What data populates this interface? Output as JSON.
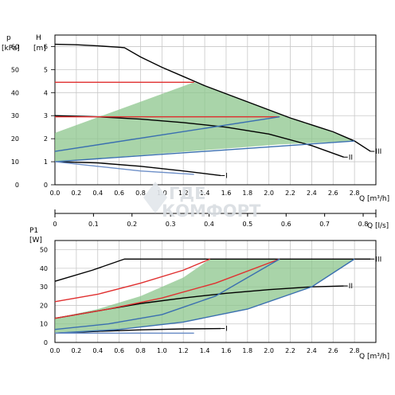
{
  "watermark": {
    "line1": "ГДЕ",
    "line2": "КОМФОРТ"
  },
  "chart_data": [
    {
      "type": "line",
      "ylabel_left": "p",
      "ylabel_left_unit": "[kPa]",
      "ylabel_right": "H",
      "ylabel_right_unit": "[m]",
      "xlabel": "Q [m³/h]",
      "x_ticks": [
        "0.0",
        "0.2",
        "0.4",
        "0.6",
        "0.8",
        "1.0",
        "1.2",
        "1.4",
        "1.6",
        "1.8",
        "2.0",
        "2.2",
        "2.4",
        "2.6",
        "2.8"
      ],
      "y_left_ticks": [
        "0",
        "10",
        "20",
        "30",
        "40",
        "50",
        "60"
      ],
      "y_right_ticks": [
        "0",
        "1",
        "2",
        "3",
        "4",
        "5",
        "6"
      ],
      "xlim": [
        0,
        3.0
      ],
      "ylim": [
        0,
        6.5
      ],
      "grid": true,
      "series": [
        {
          "name": "III",
          "color": "#000000",
          "x": [
            0,
            0.2,
            0.4,
            0.6,
            0.65,
            0.8,
            1.0,
            1.2,
            1.4,
            1.6,
            1.8,
            2.0,
            2.2,
            2.4,
            2.6,
            2.8,
            2.95
          ],
          "y": [
            6.1,
            6.08,
            6.03,
            5.97,
            5.95,
            5.55,
            5.1,
            4.7,
            4.3,
            3.95,
            3.6,
            3.25,
            2.9,
            2.6,
            2.3,
            1.9,
            1.45
          ]
        },
        {
          "name": "II",
          "color": "#000000",
          "x": [
            0,
            0.4,
            0.8,
            1.2,
            1.6,
            2.0,
            2.4,
            2.7
          ],
          "y": [
            3.0,
            2.95,
            2.85,
            2.7,
            2.5,
            2.2,
            1.7,
            1.2
          ]
        },
        {
          "name": "I",
          "color": "#000000",
          "x": [
            0,
            0.4,
            0.8,
            1.2,
            1.55
          ],
          "y": [
            1.0,
            0.95,
            0.8,
            0.6,
            0.4
          ]
        },
        {
          "name": "",
          "color": "#e03030",
          "x": [
            0,
            1.3
          ],
          "y": [
            4.45,
            4.45
          ]
        },
        {
          "name": "",
          "color": "#e03030",
          "x": [
            0,
            2.1
          ],
          "y": [
            2.95,
            2.95
          ]
        },
        {
          "name": "",
          "color": "#3a6fb0",
          "x": [
            0,
            2.1
          ],
          "y": [
            1.45,
            2.95
          ]
        },
        {
          "name": "",
          "color": "#3a6fb0",
          "x": [
            0,
            2.8
          ],
          "y": [
            1.0,
            1.9
          ]
        },
        {
          "name": "",
          "color": "#6d8fc8",
          "x": [
            0,
            0.8,
            1.3
          ],
          "y": [
            1.0,
            0.6,
            0.45
          ]
        }
      ],
      "shaded_region": {
        "color": "#8cc68c",
        "x": [
          0,
          1.3,
          1.6,
          1.9,
          2.2,
          2.5,
          2.8,
          2.1,
          1.4,
          0.7,
          0
        ],
        "y": [
          2.25,
          4.45,
          3.95,
          3.45,
          2.9,
          2.45,
          1.9,
          1.75,
          1.5,
          1.25,
          1.0
        ]
      }
    },
    {
      "type": "axis",
      "xlabel": "Q [l/s]",
      "x_ticks": [
        "0",
        "0.1",
        "0.2",
        "0.3",
        "0.4",
        "0.5",
        "0.6",
        "0.7",
        "0.8"
      ],
      "xlim": [
        0,
        0.833
      ]
    },
    {
      "type": "line",
      "ylabel": "P1",
      "ylabel_unit": "[W]",
      "xlabel": "Q [m³/h]",
      "x_ticks": [
        "0.0",
        "0.2",
        "0.4",
        "0.6",
        "0.8",
        "1.0",
        "1.2",
        "1.4",
        "1.6",
        "1.8",
        "2.0",
        "2.2",
        "2.4",
        "2.6",
        "2.8"
      ],
      "y_ticks": [
        "0",
        "10",
        "20",
        "30",
        "40",
        "50"
      ],
      "xlim": [
        0,
        3.0
      ],
      "ylim": [
        0,
        55
      ],
      "grid": true,
      "series": [
        {
          "name": "III",
          "color": "#000000",
          "x": [
            0,
            0.35,
            0.65,
            2.7,
            2.95
          ],
          "y": [
            33,
            39,
            45,
            45,
            45
          ]
        },
        {
          "name": "II",
          "color": "#000000",
          "x": [
            0,
            0.4,
            0.8,
            1.2,
            1.6,
            2.0,
            2.4,
            2.7
          ],
          "y": [
            13,
            17,
            21,
            24,
            26.5,
            28.5,
            30,
            30.5
          ]
        },
        {
          "name": "I",
          "color": "#000000",
          "x": [
            0,
            0.4,
            0.8,
            1.2,
            1.55
          ],
          "y": [
            5,
            6,
            6.8,
            7.3,
            7.5
          ]
        },
        {
          "name": "",
          "color": "#e03030",
          "x": [
            0,
            0.4,
            0.8,
            1.2,
            1.45
          ],
          "y": [
            22,
            26,
            32,
            39,
            45
          ]
        },
        {
          "name": "",
          "color": "#e03030",
          "x": [
            0,
            0.5,
            1.0,
            1.5,
            2.1
          ],
          "y": [
            13,
            18,
            24,
            32,
            45
          ]
        },
        {
          "name": "",
          "color": "#3a6fb0",
          "x": [
            0,
            0.5,
            1.0,
            1.5,
            2.1
          ],
          "y": [
            7,
            10,
            15,
            25,
            45
          ]
        },
        {
          "name": "",
          "color": "#3a6fb0",
          "x": [
            0,
            0.6,
            1.2,
            1.8,
            2.4,
            2.8
          ],
          "y": [
            5,
            7,
            11,
            18,
            30,
            45
          ]
        },
        {
          "name": "",
          "color": "#6d8fc8",
          "x": [
            0,
            0.6,
            1.3
          ],
          "y": [
            5,
            5,
            5
          ]
        }
      ],
      "shaded_region": {
        "color": "#8cc68c",
        "x": [
          0,
          0.4,
          0.8,
          1.2,
          1.45,
          2.8,
          2.4,
          1.8,
          1.2,
          0.6,
          0
        ],
        "y": [
          13,
          18,
          25,
          35,
          45,
          45,
          30,
          18,
          11,
          7,
          5
        ]
      }
    }
  ]
}
